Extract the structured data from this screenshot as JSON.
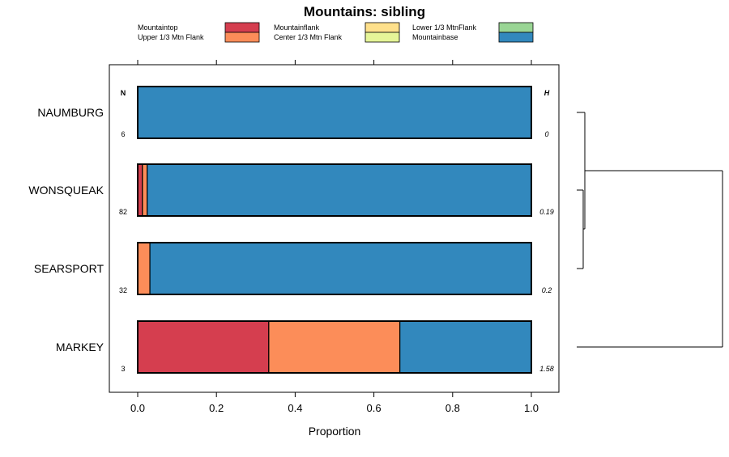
{
  "chart_data": {
    "type": "bar",
    "orientation": "horizontal",
    "stacked": true,
    "title": "Mountains: sibling",
    "xlabel": "Proportion",
    "ylabel": "",
    "xlim": [
      0,
      1
    ],
    "x_ticks": [
      "0.0",
      "0.2",
      "0.4",
      "0.6",
      "0.8",
      "1.0"
    ],
    "n_header": "N",
    "h_header": "H",
    "legend_placement": "top",
    "legend": [
      {
        "name": "Mountaintop",
        "color": "#d53e4f"
      },
      {
        "name": "Upper 1/3 Mtn Flank",
        "color": "#fc8d59"
      },
      {
        "name": "Mountainflank",
        "color": "#fee08b"
      },
      {
        "name": "Center 1/3 Mtn Flank",
        "color": "#e6f598"
      },
      {
        "name": "Lower 1/3 MtnFlank",
        "color": "#99d594"
      },
      {
        "name": "Mountainbase",
        "color": "#3288bd"
      }
    ],
    "categories": [
      "NAUMBURG",
      "WONSQUEAK",
      "SEARSPORT",
      "MARKEY"
    ],
    "n": [
      "6",
      "82",
      "32",
      "3"
    ],
    "h": [
      "0",
      "0.19",
      "0.2",
      "1.58"
    ],
    "series": [
      {
        "name": "Mountaintop",
        "values": [
          0,
          0.012,
          0,
          0.333
        ]
      },
      {
        "name": "Upper 1/3 Mtn Flank",
        "values": [
          0,
          0.012,
          0.031,
          0.333
        ]
      },
      {
        "name": "Mountainflank",
        "values": [
          0,
          0,
          0,
          0
        ]
      },
      {
        "name": "Center 1/3 Mtn Flank",
        "values": [
          0,
          0,
          0,
          0
        ]
      },
      {
        "name": "Lower 1/3 MtnFlank",
        "values": [
          0,
          0,
          0,
          0
        ]
      },
      {
        "name": "Mountainbase",
        "values": [
          1,
          0.976,
          0.969,
          0.334
        ]
      }
    ],
    "dendrogram": true,
    "grid": false
  }
}
